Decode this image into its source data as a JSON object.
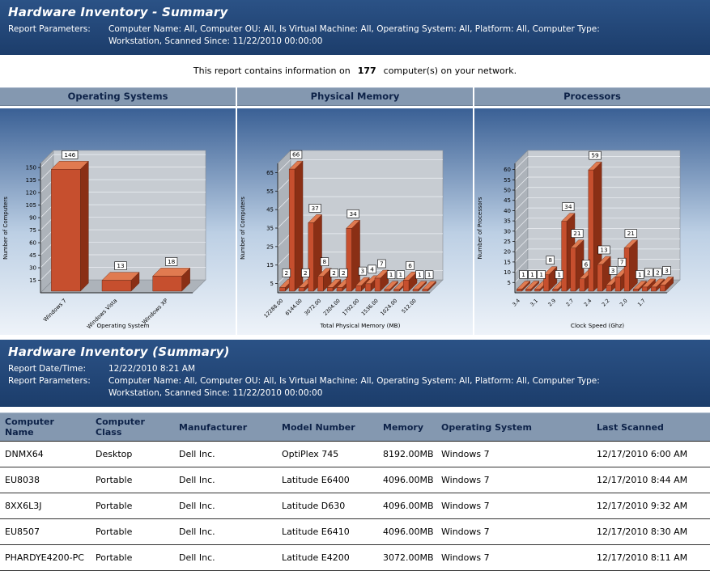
{
  "colors": {
    "header_bg": "#1e4372",
    "section_bar_bg": "#8498b0",
    "section_bar_text": "#0d2248",
    "bar_front": "#c64f2e",
    "bar_top": "#e07a50",
    "bar_side": "#8a2f15",
    "chart_bg_top": "#3a6095",
    "chart_bg_bottom": "#eef3f9"
  },
  "summary_header": {
    "title": "Hardware Inventory - Summary",
    "params_label": "Report Parameters:",
    "params_line1": "Computer Name:  All, Computer OU:  All, Is Virtual Machine:  All, Operating System:  All, Platform:  All, Computer Type:",
    "params_line2": "Workstation, Scanned Since:  11/22/2010 00:00:00"
  },
  "info_line": {
    "prefix": "This report contains information on",
    "count": "177",
    "suffix": "computer(s) on your network."
  },
  "chart_data": [
    {
      "type": "bar",
      "title": "Operating Systems",
      "categories": [
        "Windows 7",
        "Windows Vista",
        "Windows XP"
      ],
      "values": [
        146,
        13,
        18
      ],
      "xlabel": "Operating System",
      "ylabel": "Number of Computers",
      "yticks": [
        15,
        30,
        45,
        60,
        75,
        90,
        105,
        120,
        135,
        150
      ],
      "ylim": [
        0,
        155
      ],
      "legend": "none",
      "grid": true
    },
    {
      "type": "bar",
      "title": "Physical Memory",
      "categories": [
        "12288.00",
        "",
        "6144.00",
        "",
        "3072.00",
        "",
        "2304.00",
        "",
        "1792.00",
        "",
        "1536.00",
        "",
        "1024.00",
        "",
        "512.00",
        ""
      ],
      "values": [
        2,
        66,
        2,
        37,
        8,
        2,
        2,
        34,
        3,
        4,
        7,
        1,
        1,
        6,
        1,
        1
      ],
      "xlabel": "Total Physical Memory (MB)",
      "ylabel": "Number of Computers",
      "yticks": [
        5,
        15,
        25,
        35,
        45,
        55,
        65
      ],
      "ylim": [
        0,
        70
      ],
      "legend": "none",
      "grid": true
    },
    {
      "type": "bar",
      "title": "Processors",
      "categories": [
        "3.4",
        "",
        "3.1",
        "",
        "2.9",
        "",
        "2.7",
        "",
        "2.4",
        "",
        "2.2",
        "",
        "2.0",
        "",
        "1.7",
        "",
        ""
      ],
      "values": [
        1,
        1,
        1,
        8,
        1,
        34,
        21,
        6,
        59,
        13,
        3,
        7,
        21,
        1,
        2,
        2,
        3
      ],
      "xlabel": "Clock Speed (Ghz)",
      "ylabel": "Number of Processors",
      "yticks": [
        5,
        10,
        15,
        20,
        25,
        30,
        35,
        40,
        45,
        50,
        55,
        60
      ],
      "ylim": [
        0,
        63
      ],
      "legend": "none",
      "grid": true
    }
  ],
  "detail_header": {
    "title": "Hardware Inventory (Summary)",
    "date_label": "Report Date/Time:",
    "date_value": "12/22/2010 8:21 AM",
    "params_label": "Report Parameters:",
    "params_line1": "Computer Name:  All, Computer OU:  All, Is Virtual Machine:  All, Operating System:  All, Platform:  All, Computer Type:",
    "params_line2": "Workstation, Scanned Since:  11/22/2010 00:00:00"
  },
  "table": {
    "columns": [
      "Computer Name",
      "Computer Class",
      "Manufacturer",
      "Model Number",
      "Memory",
      "Operating System",
      "Last Scanned"
    ],
    "rows": [
      [
        "DNMX64",
        "Desktop",
        "Dell Inc.",
        "OptiPlex 745",
        "8192.00MB",
        "Windows 7",
        "12/17/2010 6:00 AM"
      ],
      [
        "EU8038",
        "Portable",
        "Dell Inc.",
        "Latitude E6400",
        "4096.00MB",
        "Windows 7",
        "12/17/2010 8:44 AM"
      ],
      [
        "8XX6L3J",
        "Portable",
        "Dell Inc.",
        "Latitude D630",
        "4096.00MB",
        "Windows 7",
        "12/17/2010 9:32 AM"
      ],
      [
        "EU8507",
        "Portable",
        "Dell Inc.",
        "Latitude E6410",
        "4096.00MB",
        "Windows 7",
        "12/17/2010 8:30 AM"
      ],
      [
        "PHARDYE4200-PC",
        "Portable",
        "Dell Inc.",
        "Latitude E4200",
        "3072.00MB",
        "Windows 7",
        "12/17/2010 8:11 AM"
      ]
    ]
  }
}
